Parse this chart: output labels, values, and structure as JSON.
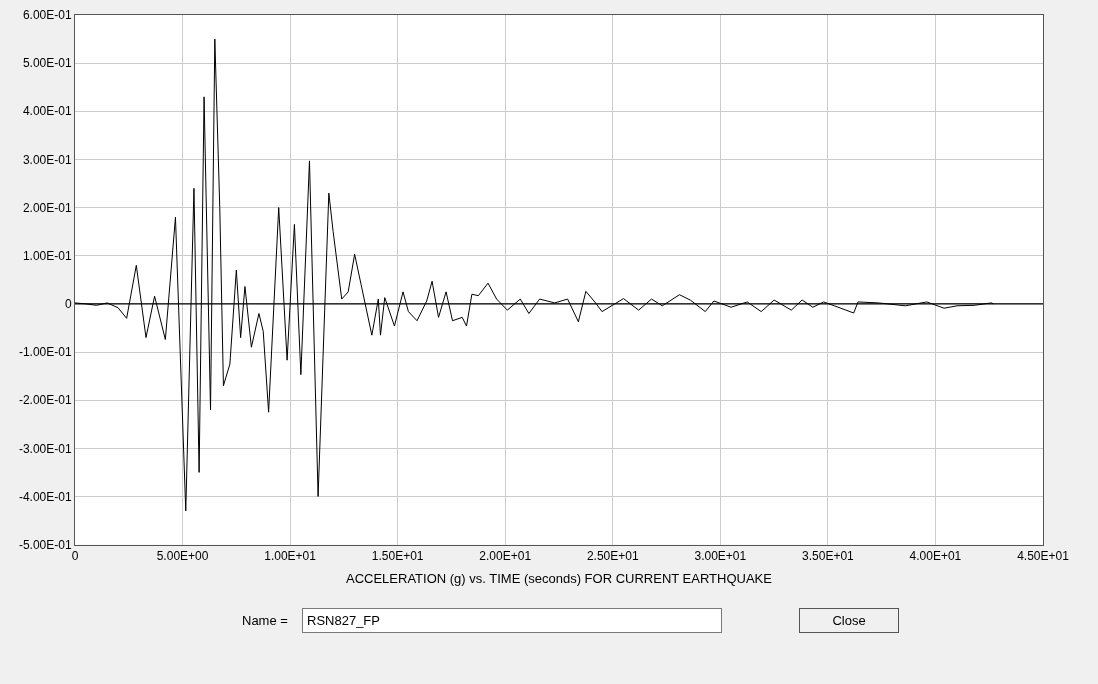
{
  "chart_data": {
    "type": "line",
    "xlabel": "ACCELERATION (g) vs. TIME (seconds) FOR CURRENT EARTHQUAKE",
    "x": [
      0,
      0.5,
      1.0,
      1.5,
      2.0,
      2.4,
      2.85,
      3.3,
      3.7,
      4.2,
      4.67,
      5.15,
      5.53,
      5.77,
      6.0,
      6.3,
      6.5,
      6.73,
      6.9,
      7.2,
      7.5,
      7.7,
      7.9,
      8.2,
      8.55,
      8.75,
      9.0,
      9.47,
      9.86,
      10.2,
      10.5,
      10.9,
      11.3,
      11.8,
      12.0,
      12.4,
      12.7,
      13.0,
      13.3,
      13.8,
      14.1,
      14.2,
      14.4,
      14.85,
      15.25,
      15.5,
      15.9,
      16.35,
      16.6,
      16.9,
      17.25,
      17.55,
      18.0,
      18.2,
      18.45,
      18.75,
      19.2,
      19.6,
      20.1,
      20.7,
      21.1,
      21.6,
      22.3,
      22.9,
      23.4,
      23.75,
      24.2,
      24.5,
      25.5,
      26.2,
      26.8,
      27.3,
      28.1,
      28.6,
      29.3,
      29.7,
      30.5,
      31.25,
      31.9,
      32.5,
      33.3,
      33.8,
      34.3,
      34.8,
      35.3,
      36.2,
      36.4,
      37.35,
      38.6,
      39.6,
      40.4,
      41.0,
      41.8,
      42.6,
      42.7
    ],
    "series": [
      {
        "color": "#000000",
        "values": [
          0.002,
          0.0,
          -0.003,
          0.002,
          -0.008,
          -0.03,
          0.08,
          -0.07,
          0.016,
          -0.074,
          0.18,
          -0.43,
          0.24,
          -0.35,
          0.43,
          -0.22,
          0.55,
          0.2,
          -0.17,
          -0.125,
          0.07,
          -0.07,
          0.036,
          -0.09,
          -0.02,
          -0.057,
          -0.225,
          0.2,
          -0.117,
          0.165,
          -0.147,
          0.297,
          -0.4,
          0.23,
          0.15,
          0.01,
          0.025,
          0.103,
          0.04,
          -0.065,
          0.01,
          -0.065,
          0.013,
          -0.046,
          0.025,
          -0.016,
          -0.035,
          0.006,
          0.047,
          -0.028,
          0.025,
          -0.035,
          -0.028,
          -0.046,
          0.02,
          0.017,
          0.043,
          0.01,
          -0.013,
          0.01,
          -0.02,
          0.01,
          0.002,
          0.01,
          -0.037,
          0.026,
          0.002,
          -0.016,
          0.011,
          -0.013,
          0.01,
          -0.004,
          0.019,
          0.008,
          -0.016,
          0.006,
          -0.007,
          0.004,
          -0.016,
          0.008,
          -0.013,
          0.008,
          -0.007,
          0.004,
          -0.004,
          -0.019,
          0.004,
          0.002,
          -0.004,
          0.004,
          -0.009,
          -0.004,
          -0.003,
          0.002,
          0.0
        ]
      }
    ],
    "xlim": [
      0,
      45
    ],
    "ylim": [
      -0.5,
      0.6
    ],
    "xticks": [
      0,
      {
        "value": 5,
        "label": "5.00E+00"
      },
      {
        "value": 10,
        "label": "1.00E+01"
      },
      {
        "value": 15,
        "label": "1.50E+01"
      },
      {
        "value": 20,
        "label": "2.00E+01"
      },
      {
        "value": 25,
        "label": "2.50E+01"
      },
      {
        "value": 30,
        "label": "3.00E+01"
      },
      {
        "value": 35,
        "label": "3.50E+01"
      },
      {
        "value": 40,
        "label": "4.00E+01"
      },
      {
        "value": 45,
        "label": "4.50E+01"
      }
    ],
    "yticks": [
      {
        "value": -0.5,
        "label": "-5.00E-01"
      },
      {
        "value": -0.4,
        "label": "-4.00E-01"
      },
      {
        "value": -0.3,
        "label": "-3.00E-01"
      },
      {
        "value": -0.2,
        "label": "-2.00E-01"
      },
      {
        "value": -0.1,
        "label": "-1.00E-01"
      },
      0,
      {
        "value": 0.1,
        "label": "1.00E-01"
      },
      {
        "value": 0.2,
        "label": "2.00E-01"
      },
      {
        "value": 0.3,
        "label": "3.00E-01"
      },
      {
        "value": 0.4,
        "label": "4.00E-01"
      },
      {
        "value": 0.5,
        "label": "5.00E-01"
      },
      {
        "value": 0.6,
        "label": "6.00E-01"
      }
    ],
    "ref_lines": [
      {
        "axis": "y",
        "value": 0,
        "color": "#000000"
      }
    ],
    "annotations": [
      "Name =",
      "RSN827_FP",
      "Close"
    ],
    "grid": true,
    "marker": "none",
    "line_style": "solid"
  }
}
